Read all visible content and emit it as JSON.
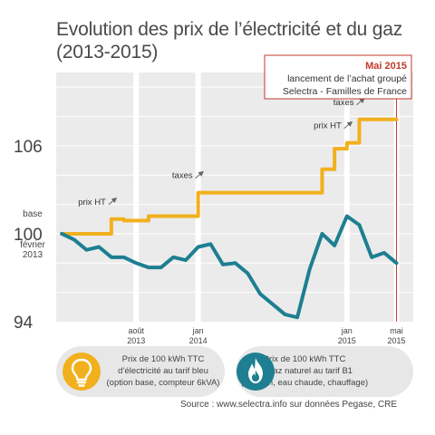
{
  "chart_data": {
    "type": "line",
    "title_lines": [
      "Evolution des prix de l’électricité et du gaz",
      "(2013-2015)"
    ],
    "x_range": [
      "2013-02",
      "2015-05"
    ],
    "y_range": [
      94,
      111
    ],
    "y_ticks": [
      {
        "value": 94,
        "label": "94"
      },
      {
        "value": 100,
        "label": "100"
      },
      {
        "value": 106,
        "label": "106"
      }
    ],
    "base_label": {
      "top": "base",
      "bottom_lines": [
        "février",
        "2013"
      ]
    },
    "x_ticks": [
      {
        "x": "2013-08",
        "lines": [
          "août",
          "2013"
        ]
      },
      {
        "x": "2014-01",
        "lines": [
          "jan",
          "2014"
        ]
      },
      {
        "x": "2015-01",
        "lines": [
          "jan",
          "2015"
        ]
      },
      {
        "x": "2015-05",
        "lines": [
          "mai",
          "2015"
        ]
      }
    ],
    "series": [
      {
        "name": "Prix de 100 kWh TTC d’électricité au tarif bleu",
        "color": "#f2b01e",
        "points": [
          [
            "2013-02",
            100
          ],
          [
            "2013-05",
            100
          ],
          [
            "2013-06",
            101
          ],
          [
            "2013-07",
            100.9
          ],
          [
            "2013-08",
            100.9
          ],
          [
            "2013-09",
            101.2
          ],
          [
            "2013-10",
            101.2
          ],
          [
            "2013-12",
            101.2
          ],
          [
            "2014-01",
            102.8
          ],
          [
            "2014-02",
            102.8
          ],
          [
            "2014-10",
            102.8
          ],
          [
            "2014-11",
            104.4
          ],
          [
            "2014-12",
            105.8
          ],
          [
            "2015-01",
            106.2
          ],
          [
            "2015-02",
            107.8
          ],
          [
            "2015-05",
            107.8
          ]
        ]
      },
      {
        "name": "Prix de 100 kWh TTC de gaz naturel au tarif B1",
        "color": "#1d7f91",
        "points": [
          [
            "2013-02",
            100
          ],
          [
            "2013-03",
            99.6
          ],
          [
            "2013-04",
            98.9
          ],
          [
            "2013-05",
            99.1
          ],
          [
            "2013-06",
            98.4
          ],
          [
            "2013-07",
            98.4
          ],
          [
            "2013-08",
            98
          ],
          [
            "2013-09",
            97.7
          ],
          [
            "2013-10",
            97.7
          ],
          [
            "2013-11",
            98.4
          ],
          [
            "2013-12",
            98.2
          ],
          [
            "2014-01",
            99.1
          ],
          [
            "2014-02",
            99.3
          ],
          [
            "2014-03",
            97.9
          ],
          [
            "2014-04",
            98
          ],
          [
            "2014-05",
            97.3
          ],
          [
            "2014-06",
            95.9
          ],
          [
            "2014-07",
            95.2
          ],
          [
            "2014-08",
            94.5
          ],
          [
            "2014-09",
            94.3
          ],
          [
            "2014-10",
            97.6
          ],
          [
            "2014-11",
            100
          ],
          [
            "2014-12",
            99.2
          ],
          [
            "2015-01",
            101.2
          ],
          [
            "2015-02",
            100.6
          ],
          [
            "2015-03",
            98.4
          ],
          [
            "2015-04",
            98.7
          ],
          [
            "2015-05",
            98
          ]
        ]
      }
    ],
    "annotations": [
      {
        "text": "prix HT",
        "x": "2013-06",
        "y": 101
      },
      {
        "text": "taxes",
        "x": "2014-01",
        "y": 102.8
      },
      {
        "text": "prix HT",
        "x": "2015-01",
        "y": 106.2
      },
      {
        "text": "taxes",
        "x": "2015-02",
        "y": 107.8
      }
    ],
    "event": {
      "x": "2015-05",
      "lines": [
        "Mai 2015",
        "lancement de l’achat groupé",
        "Selectra - Familles de France"
      ],
      "color": "#c0392b"
    },
    "legend": [
      {
        "icon": "lightbulb-icon",
        "color": "#f2b01e",
        "lines": [
          "Prix de 100 kWh TTC",
          "d’électricité au tarif bleu",
          "(option base, compteur 6kVA)"
        ]
      },
      {
        "icon": "gas-flame-icon",
        "color": "#1d7f91",
        "lines": [
          "Prix de 100 kWh TTC",
          "de gaz naturel au tarif B1",
          "(cuisson, eau chaude, chauffage)"
        ]
      }
    ],
    "source": "Source : www.selectra.info sur données Pegase, CRE",
    "grid": true
  }
}
